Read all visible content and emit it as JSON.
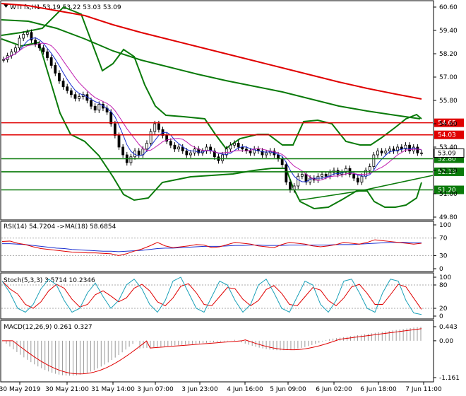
{
  "main": {
    "header": "WTI fs,H1  53.19 53.22 53.03 53.09",
    "price_ticks": [
      "60.60",
      "59.40",
      "58.20",
      "57.00",
      "55.80",
      "54.60",
      "53.40",
      "52.20",
      "51.00",
      "49.80"
    ],
    "price_range": [
      49.8,
      60.6
    ],
    "levels": [
      {
        "value": 54.65,
        "label": "54.65"
      },
      {
        "value": 54.03,
        "label": "54.03"
      },
      {
        "value": 52.8,
        "label": "52.80"
      },
      {
        "value": 52.13,
        "label": "52.13"
      },
      {
        "value": 51.2,
        "label": "51.20"
      }
    ],
    "current": {
      "value": 53.09,
      "label": "53.09"
    },
    "colors": {
      "bands": "#0a7a0a",
      "ma_red": "#e00000",
      "ma_green": "#0a7a0a",
      "level": "#0a7a0a",
      "level_red": "#e00000",
      "candle": "#000000"
    }
  },
  "rsi": {
    "header": "RSI(14) 54.7204  ->MA(18) 58.6854",
    "ticks": [
      "100",
      "70",
      "30",
      "0"
    ]
  },
  "stoch": {
    "header": "Stoch(5,3,3) 3.5714 10.2346",
    "ticks": [
      "100",
      "80",
      "20",
      "0"
    ]
  },
  "macd": {
    "header": "MACD(12,26,9) 0.261 0.327",
    "ticks": [
      "0.443",
      "0.00",
      "-1.161"
    ]
  },
  "time_axis": [
    "30 May 2019",
    "30 May 21:00",
    "31 May 14:00",
    "3 Jun 07:00",
    "3 Jun 23:00",
    "4 Jun 16:00",
    "5 Jun 09:00",
    "6 Jun 02:00",
    "6 Jun 18:00",
    "7 Jun 11:00"
  ]
}
